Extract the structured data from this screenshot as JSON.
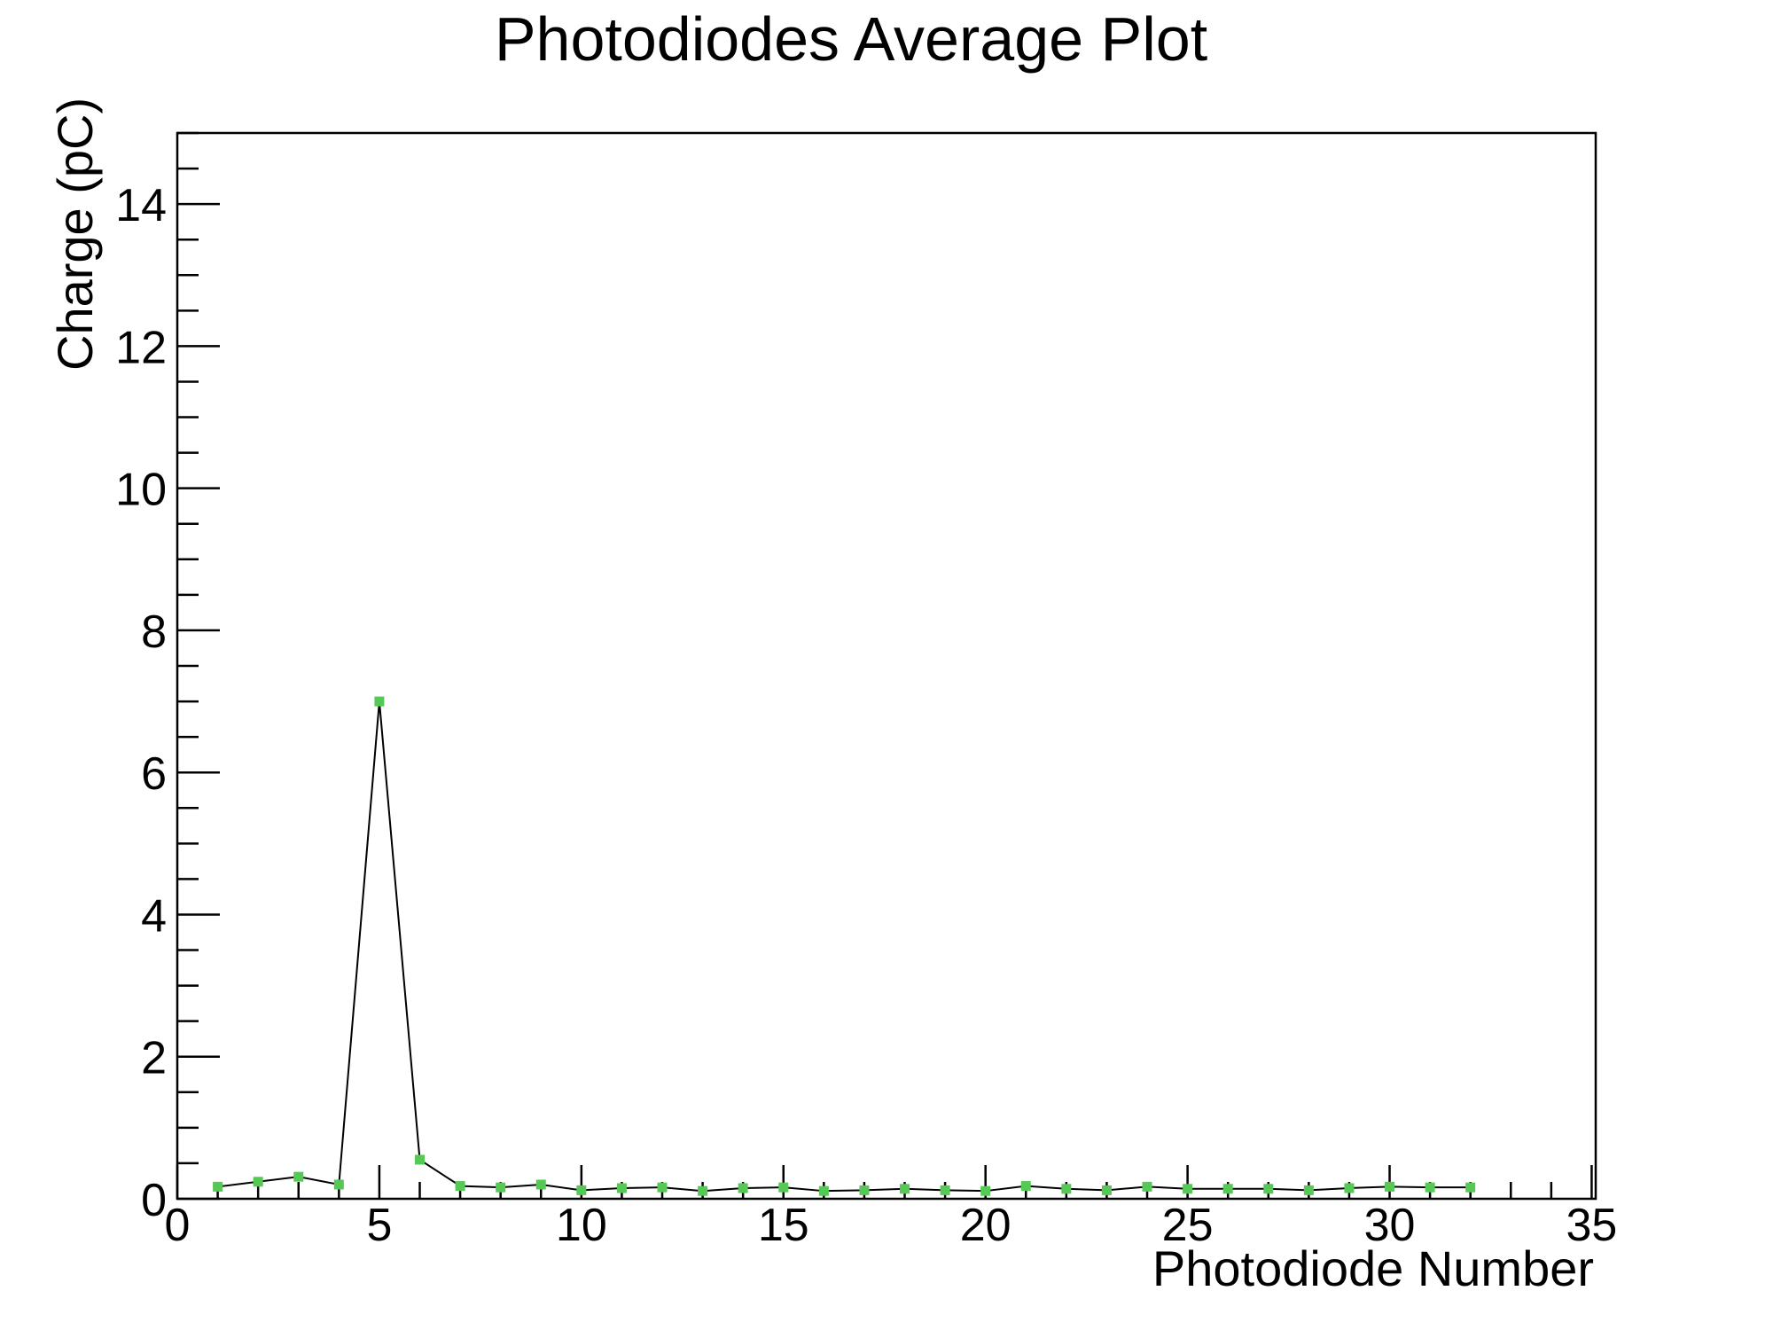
{
  "chart_data": {
    "type": "line",
    "title": "Photodiodes Average Plot",
    "xlabel": "Photodiode Number",
    "ylabel": "Charge (pC)",
    "x": [
      1,
      2,
      3,
      4,
      5,
      6,
      7,
      8,
      9,
      10,
      11,
      12,
      13,
      14,
      15,
      16,
      17,
      18,
      19,
      20,
      21,
      22,
      23,
      24,
      25,
      26,
      27,
      28,
      29,
      30,
      31,
      32
    ],
    "y": [
      0.17,
      0.24,
      0.31,
      0.2,
      7.0,
      0.55,
      0.18,
      0.16,
      0.2,
      0.12,
      0.15,
      0.16,
      0.11,
      0.15,
      0.16,
      0.11,
      0.12,
      0.14,
      0.12,
      0.11,
      0.18,
      0.14,
      0.12,
      0.17,
      0.14,
      0.14,
      0.14,
      0.12,
      0.15,
      0.17,
      0.16,
      0.16
    ],
    "xlim": [
      0,
      35.1
    ],
    "ylim": [
      0,
      15
    ],
    "x_major_ticks": [
      0,
      5,
      10,
      15,
      20,
      25,
      30,
      35
    ],
    "x_minor_tick_step": 1,
    "y_major_ticks": [
      0,
      2,
      4,
      6,
      8,
      10,
      12,
      14
    ],
    "y_minor_tick_step": 0.5,
    "grid": false,
    "legend": "none",
    "marker_shape": "square",
    "marker_color": "#55c855",
    "line_color": "#000000",
    "axis_color": "#000000",
    "background_color": "#ffffff"
  }
}
